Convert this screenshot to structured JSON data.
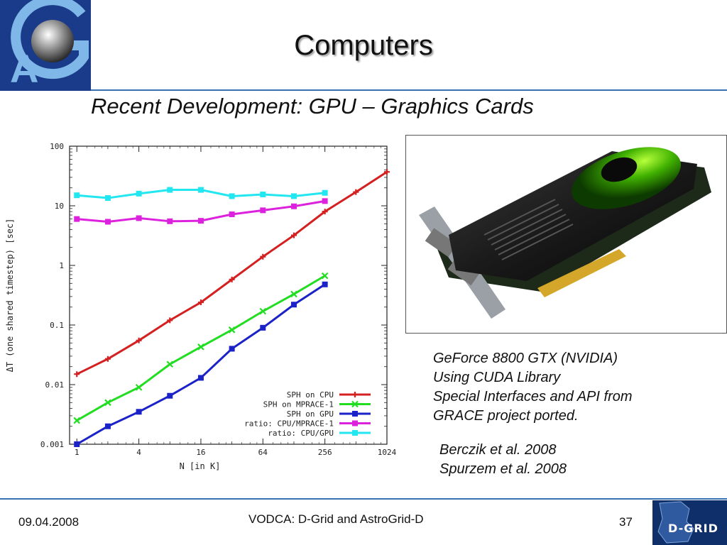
{
  "slide": {
    "title": "Computers",
    "subtitle": "Recent Development: GPU – Graphics Cards"
  },
  "notes": [
    "GeForce 8800 GTX (NVIDIA)",
    "Using CUDA Library",
    "Special Interfaces and API from",
    "GRACE project ported."
  ],
  "references": [
    "Berczik et al. 2008",
    "Spurzem et al. 2008"
  ],
  "footer": {
    "date": "09.04.2008",
    "center": "VODCA: D-Grid and AstroGrid-D",
    "page": "37"
  },
  "logos": {
    "left_letter_a": "A",
    "left_letter_g": "G",
    "right_text": "D-GRID"
  },
  "colors": {
    "accent_blue": "#3a6fb0",
    "logo_navy": "#1a3a8a"
  },
  "chart_data": {
    "type": "line",
    "x_scale": "log2",
    "y_scale": "log10",
    "xlabel": "N [in K]",
    "ylabel": "ΔT (one shared timestep) [sec]",
    "xticks": [
      1,
      4,
      16,
      64,
      256,
      1024
    ],
    "xtick_labels": [
      "1",
      "4",
      "16",
      "64",
      "256",
      "1024"
    ],
    "yticks": [
      0.001,
      0.01,
      0.1,
      1,
      10,
      100
    ],
    "ytick_labels": [
      "0.001",
      "0.01",
      "0.1",
      "1",
      "10",
      "100"
    ],
    "xlim": [
      0.85,
      1024
    ],
    "ylim": [
      0.001,
      100
    ],
    "legend_position": "bottom-right",
    "series": [
      {
        "name": "SPH on CPU",
        "color": "#d42020",
        "marker": "plus",
        "x": [
          1,
          2,
          4,
          8,
          16,
          32,
          64,
          128,
          256,
          512,
          1024
        ],
        "y": [
          0.015,
          0.027,
          0.055,
          0.12,
          0.24,
          0.58,
          1.4,
          3.2,
          8,
          17,
          37
        ]
      },
      {
        "name": "SPH on MPRACE-1",
        "color": "#22dd22",
        "marker": "cross",
        "x": [
          1,
          2,
          4,
          8,
          16,
          32,
          64,
          128,
          256
        ],
        "y": [
          0.0025,
          0.005,
          0.009,
          0.022,
          0.043,
          0.083,
          0.17,
          0.33,
          0.67
        ]
      },
      {
        "name": "SPH on GPU",
        "color": "#1a22c8",
        "marker": "square",
        "x": [
          1,
          2,
          4,
          8,
          16,
          32,
          64,
          128,
          256
        ],
        "y": [
          0.001,
          0.002,
          0.0035,
          0.0065,
          0.013,
          0.04,
          0.09,
          0.22,
          0.48
        ]
      },
      {
        "name": "ratio: CPU/MPRACE-1",
        "color": "#dd22dd",
        "marker": "square",
        "x": [
          1,
          2,
          4,
          8,
          16,
          32,
          64,
          128,
          256
        ],
        "y": [
          6,
          5.4,
          6.2,
          5.5,
          5.6,
          7.2,
          8.4,
          9.8,
          12
        ]
      },
      {
        "name": "ratio: CPU/GPU",
        "color": "#22e6f0",
        "marker": "square",
        "x": [
          1,
          2,
          4,
          8,
          16,
          32,
          64,
          128,
          256
        ],
        "y": [
          15,
          13.5,
          16,
          18.5,
          18.5,
          14.5,
          15.5,
          14.5,
          16.5
        ]
      }
    ]
  }
}
